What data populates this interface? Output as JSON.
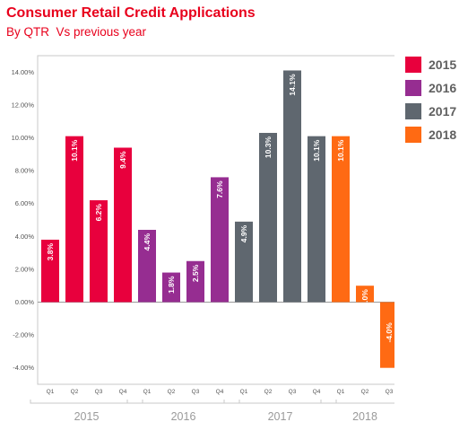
{
  "title": "Consumer Retail Credit Applications",
  "subtitle": "By QTR  Vs previous year",
  "chart_data": {
    "type": "bar",
    "title": "Consumer Retail Credit Applications",
    "subtitle": "By QTR  Vs previous year",
    "xlabel": "",
    "ylabel": "",
    "ylim": [
      -5,
      15
    ],
    "yticks": [
      "14.00%",
      "12.00%",
      "10.00%",
      "8.00%",
      "6.00%",
      "4.00%",
      "2.00%",
      "0.00%",
      "-2.00%",
      "-4.00%"
    ],
    "grid": false,
    "legend_position": "right",
    "groups": [
      {
        "year": "2015",
        "color": "#e8003d",
        "quarters": [
          "Q1",
          "Q2",
          "Q3",
          "Q4"
        ],
        "values": [
          3.8,
          10.1,
          6.2,
          9.4
        ],
        "labels": [
          "3.8%",
          "10.1%",
          "6.2%",
          "9.4%"
        ]
      },
      {
        "year": "2016",
        "color": "#962d91",
        "quarters": [
          "Q1",
          "Q2",
          "Q3",
          "Q4"
        ],
        "values": [
          4.4,
          1.8,
          2.5,
          7.6
        ],
        "labels": [
          "4.4%",
          "1.8%",
          "2.5%",
          "7.6%"
        ]
      },
      {
        "year": "2017",
        "color": "#5f676f",
        "quarters": [
          "Q1",
          "Q2",
          "Q3",
          "Q4"
        ],
        "values": [
          4.9,
          10.3,
          14.1,
          10.1
        ],
        "labels": [
          "4.9%",
          "10.3%",
          "14.1%",
          "10.1%"
        ]
      },
      {
        "year": "2018",
        "color": "#ff6a13",
        "quarters": [
          "Q1",
          "Q2",
          "Q3"
        ],
        "values": [
          10.1,
          1.0,
          -4.0
        ],
        "labels": [
          "10.1%",
          "1.0%",
          "-4.0%"
        ]
      }
    ],
    "legend": [
      {
        "label": "2015",
        "color": "#e8003d"
      },
      {
        "label": "2016",
        "color": "#962d91"
      },
      {
        "label": "2017",
        "color": "#5f676f"
      },
      {
        "label": "2018",
        "color": "#ff6a13"
      }
    ]
  }
}
